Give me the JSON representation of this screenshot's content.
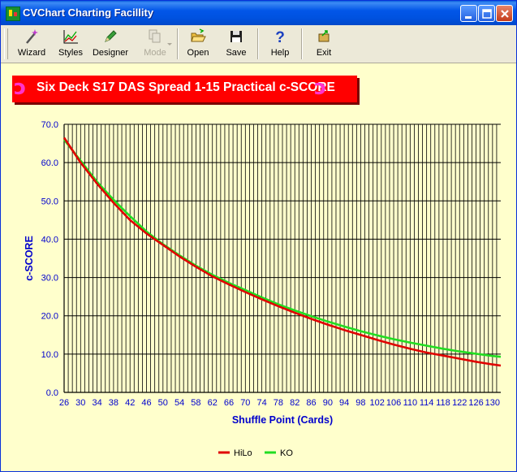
{
  "window": {
    "title": "CVChart Charting Facillity",
    "buttons": [
      "minimize",
      "maximize",
      "close"
    ]
  },
  "toolbar": {
    "items": [
      {
        "label": "Wizard",
        "icon": "wand-icon",
        "enabled": true
      },
      {
        "label": "Styles",
        "icon": "line-chart-icon",
        "enabled": true
      },
      {
        "label": "Designer",
        "icon": "pen-icon",
        "enabled": true
      },
      {
        "label": "Mode",
        "icon": "copy-icon",
        "enabled": false
      },
      {
        "label": "Open",
        "icon": "open-folder-icon",
        "enabled": true
      },
      {
        "label": "Save",
        "icon": "floppy-disk-icon",
        "enabled": true
      },
      {
        "label": "Help",
        "icon": "help-icon",
        "enabled": true
      },
      {
        "label": "Exit",
        "icon": "exit-icon",
        "enabled": true
      }
    ]
  },
  "banner": {
    "title": "Six Deck S17 DAS Spread 1-15 Practical c-SCORE",
    "color": "#ff0000"
  },
  "chart_data": {
    "type": "line",
    "title": "Six Deck S17 DAS Spread 1-15 Practical c-SCORE",
    "xlabel": "Shuffle Point (Cards)",
    "ylabel": "c-SCORE",
    "xlim": [
      26,
      132
    ],
    "ylim": [
      0,
      70
    ],
    "x_ticks": [
      26,
      30,
      34,
      38,
      42,
      46,
      50,
      54,
      58,
      62,
      66,
      70,
      74,
      78,
      82,
      86,
      90,
      94,
      98,
      102,
      106,
      110,
      114,
      118,
      122,
      126,
      130
    ],
    "y_ticks": [
      "0.0",
      "10.0",
      "20.0",
      "30.0",
      "40.0",
      "50.0",
      "60.0",
      "70.0"
    ],
    "grid": true,
    "legend_position": "bottom",
    "x": [
      26,
      30,
      34,
      38,
      42,
      46,
      50,
      54,
      58,
      62,
      66,
      70,
      74,
      78,
      82,
      86,
      90,
      94,
      98,
      102,
      106,
      110,
      114,
      118,
      122,
      126,
      130,
      132
    ],
    "series": [
      {
        "name": "HiLo",
        "color": "#e00000",
        "values": [
          66.5,
          60.0,
          54.5,
          49.5,
          45.0,
          41.5,
          38.5,
          35.5,
          32.8,
          30.3,
          28.2,
          26.2,
          24.3,
          22.5,
          20.8,
          19.2,
          17.7,
          16.3,
          15.0,
          13.7,
          12.5,
          11.4,
          10.4,
          9.6,
          8.8,
          8.0,
          7.3,
          7.0
        ]
      },
      {
        "name": "KO",
        "color": "#22dd22",
        "values": [
          66.0,
          60.5,
          55.0,
          50.3,
          46.0,
          42.0,
          38.7,
          35.8,
          33.1,
          30.7,
          28.6,
          26.7,
          24.8,
          23.0,
          21.4,
          19.9,
          18.5,
          17.2,
          16.0,
          14.9,
          13.9,
          13.0,
          12.2,
          11.4,
          10.7,
          10.1,
          9.5,
          9.3
        ]
      }
    ]
  }
}
